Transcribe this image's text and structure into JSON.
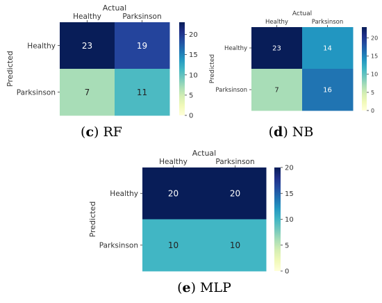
{
  "chart_data": [
    {
      "type": "heatmap",
      "caption_letter": "c",
      "caption_text": "RF",
      "title": "Actual",
      "ylabel": "Predicted",
      "x_categories": [
        "Healthy",
        "Parksinson"
      ],
      "y_categories": [
        "Healthy",
        "Parksinson"
      ],
      "values": [
        [
          23,
          19
        ],
        [
          7,
          11
        ]
      ],
      "colorbar_ticks": [
        0,
        5,
        10,
        15,
        20
      ],
      "colorbar_range": [
        0,
        23
      ],
      "colormap": "YlGnBu"
    },
    {
      "type": "heatmap",
      "caption_letter": "d",
      "caption_text": "NB",
      "title": "Actual",
      "ylabel": "Predicted",
      "x_categories": [
        "Healthy",
        "Parksinson"
      ],
      "y_categories": [
        "Healthy",
        "Parksinson"
      ],
      "values": [
        [
          23,
          14
        ],
        [
          7,
          16
        ]
      ],
      "colorbar_ticks": [
        0,
        5,
        10,
        15,
        20
      ],
      "colorbar_range": [
        0,
        23
      ],
      "colormap": "YlGnBu"
    },
    {
      "type": "heatmap",
      "caption_letter": "e",
      "caption_text": "MLP",
      "title": "Actual",
      "ylabel": "Predicted",
      "x_categories": [
        "Healthy",
        "Parksinson"
      ],
      "y_categories": [
        "Healthy",
        "Parksinson"
      ],
      "values": [
        [
          20,
          20
        ],
        [
          10,
          10
        ]
      ],
      "colorbar_ticks": [
        0,
        5,
        10,
        15,
        20
      ],
      "colorbar_range": [
        0,
        20
      ],
      "colormap": "YlGnBu"
    }
  ]
}
